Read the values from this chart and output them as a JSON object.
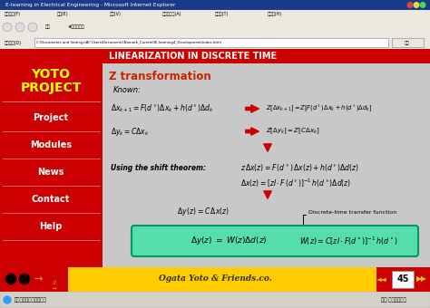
{
  "title_bar": "E-learning in Electrical Engineering - Microsoft Internet Explorer",
  "page_title": "LINEARIZATION IN DISCRETE TIME",
  "section_title": "Z transformation",
  "header_bg": "#cc0000",
  "header_text_color": "#ffffff",
  "sidebar_bg": "#cc0000",
  "sidebar_items": [
    "Project",
    "Modules",
    "News",
    "Contact",
    "Help"
  ],
  "content_bg": "#c8c8c8",
  "known_label": "Known:",
  "shift_label": "Using the shift theorem:",
  "transfer_label": "Discrete-time transfer function",
  "box_bg": "#55ddaa",
  "box_border": "#009966",
  "arrow_color": "#cc0000",
  "bottom_bar_bg": "#ffcc00",
  "page_num": "45",
  "browser_bar_color": "#1a3a8a",
  "browser_bg": "#d4d0c8",
  "nav_bg": "#cc0000",
  "sidebar_item_color": "#ffff00"
}
